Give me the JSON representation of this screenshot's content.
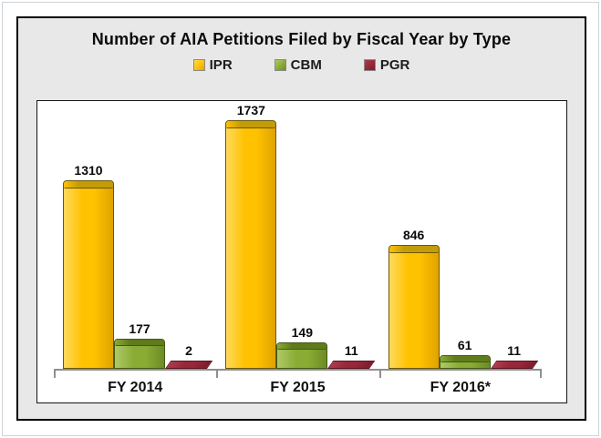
{
  "chart": {
    "panel_background": "#e8e8e8",
    "plot_background": "#ffffff",
    "axis_color": "#8f8f8f"
  },
  "chart_data": {
    "type": "bar",
    "title": "Number of AIA Petitions Filed by Fiscal Year by Type",
    "xlabel": "",
    "ylabel": "",
    "categories": [
      "FY 2014",
      "FY 2015",
      "FY 2016*"
    ],
    "series": [
      {
        "name": "IPR",
        "values": [
          1310,
          1737,
          846
        ],
        "color": "#FFC200",
        "color_light": "#FFD95C",
        "color_dark": "#DFA300",
        "cap_color": "#C39C0A",
        "border_color": "#6b5600"
      },
      {
        "name": "CBM",
        "values": [
          177,
          149,
          61
        ],
        "color": "#8AAC34",
        "color_light": "#AFC968",
        "color_dark": "#6D8B26",
        "cap_color": "#5E7C1C",
        "border_color": "#435912"
      },
      {
        "name": "PGR",
        "values": [
          2,
          11,
          11
        ],
        "color": "#96283A",
        "color_light": "#B03A4E",
        "color_dark": "#7E1C2C",
        "cap_color": "#96283A",
        "border_color": "#5C1220"
      }
    ],
    "data_labels": true,
    "legend_position": "top",
    "grid": false,
    "ylim": [
      0,
      1800
    ]
  }
}
